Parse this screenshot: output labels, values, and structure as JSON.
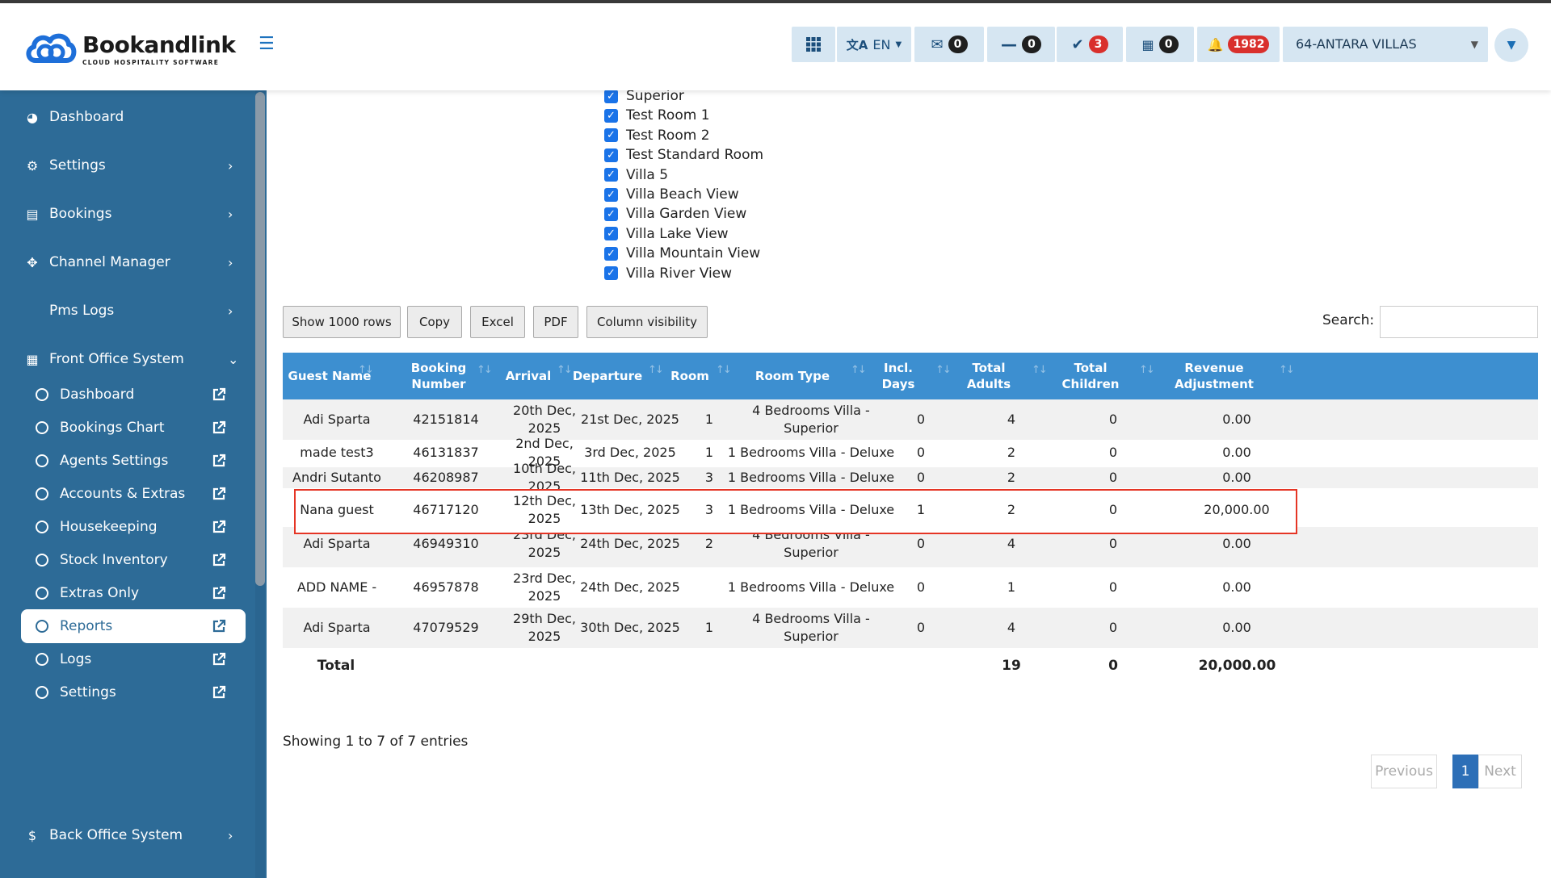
{
  "header": {
    "logo_name": "Bookandlink",
    "logo_tagline": "CLOUD HOSPITALITY SOFTWARE",
    "language": "EN",
    "counters": {
      "messages": "0",
      "minus": "0",
      "check": "3",
      "calendar": "0",
      "notifications": "1982"
    },
    "property": "64-ANTARA VILLAS"
  },
  "sidebar": {
    "items": [
      {
        "label": "Dashboard",
        "icon": "dashboard-icon"
      },
      {
        "label": "Settings",
        "icon": "gear-icon"
      },
      {
        "label": "Bookings",
        "icon": "bookings-icon"
      },
      {
        "label": "Channel Manager",
        "icon": "arrows-move-icon"
      },
      {
        "label": "Pms Logs",
        "icon": ""
      },
      {
        "label": "Front Office System",
        "icon": "calendar-icon"
      }
    ],
    "sub_items": [
      "Dashboard",
      "Bookings Chart",
      "Agents Settings",
      "Accounts & Extras",
      "Housekeeping",
      "Stock Inventory",
      "Extras Only",
      "Reports",
      "Logs",
      "Settings"
    ],
    "active_sub": "Reports",
    "bottom_item": "Back Office System"
  },
  "room_types": [
    "Superior",
    "Test Room 1",
    "Test Room 2",
    "Test Standard Room",
    "Villa 5",
    "Villa Beach View",
    "Villa Garden View",
    "Villa Lake View",
    "Villa Mountain View",
    "Villa River View"
  ],
  "toolbar": {
    "show_rows": "Show 1000 rows",
    "copy": "Copy",
    "excel": "Excel",
    "pdf": "PDF",
    "column_visibility": "Column visibility",
    "search_label": "Search:"
  },
  "table": {
    "headers": [
      "Guest Name",
      "Booking Number",
      "Arrival",
      "Departure",
      "Room",
      "Room Type",
      "Incl. Days",
      "Total Adults",
      "Total Children",
      "Revenue Adjustment"
    ],
    "rows": [
      [
        "Adi Sparta",
        "42151814",
        "20th Dec, 2025",
        "21st Dec, 2025",
        "1",
        "4 Bedrooms Villa - Superior",
        "0",
        "4",
        "0",
        "0.00"
      ],
      [
        "made test3",
        "46131837",
        "2nd Dec, 2025",
        "3rd Dec, 2025",
        "1",
        "1 Bedrooms Villa - Deluxe",
        "0",
        "2",
        "0",
        "0.00"
      ],
      [
        "Andri Sutanto",
        "46208987",
        "10th Dec, 2025",
        "11th Dec, 2025",
        "3",
        "1 Bedrooms Villa - Deluxe",
        "0",
        "2",
        "0",
        "0.00"
      ],
      [
        "Nana guest",
        "46717120",
        "12th Dec, 2025",
        "13th Dec, 2025",
        "3",
        "1 Bedrooms Villa - Deluxe",
        "1",
        "2",
        "0",
        "20,000.00"
      ],
      [
        "Adi Sparta",
        "46949310",
        "23rd Dec, 2025",
        "24th Dec, 2025",
        "2",
        "4 Bedrooms Villa - Superior",
        "0",
        "4",
        "0",
        "0.00"
      ],
      [
        "ADD NAME -",
        "46957878",
        "23rd Dec, 2025",
        "24th Dec, 2025",
        "",
        "1 Bedrooms Villa - Deluxe",
        "0",
        "1",
        "0",
        "0.00"
      ],
      [
        "Adi Sparta",
        "47079529",
        "29th Dec, 2025",
        "30th Dec, 2025",
        "1",
        "4 Bedrooms Villa - Superior",
        "0",
        "4",
        "0",
        "0.00"
      ]
    ],
    "total_label": "Total",
    "total_adults": "19",
    "total_children": "0",
    "total_revenue": "20,000.00"
  },
  "footer": {
    "info": "Showing 1 to 7 of 7 entries",
    "previous": "Previous",
    "page": "1",
    "next": "Next"
  }
}
